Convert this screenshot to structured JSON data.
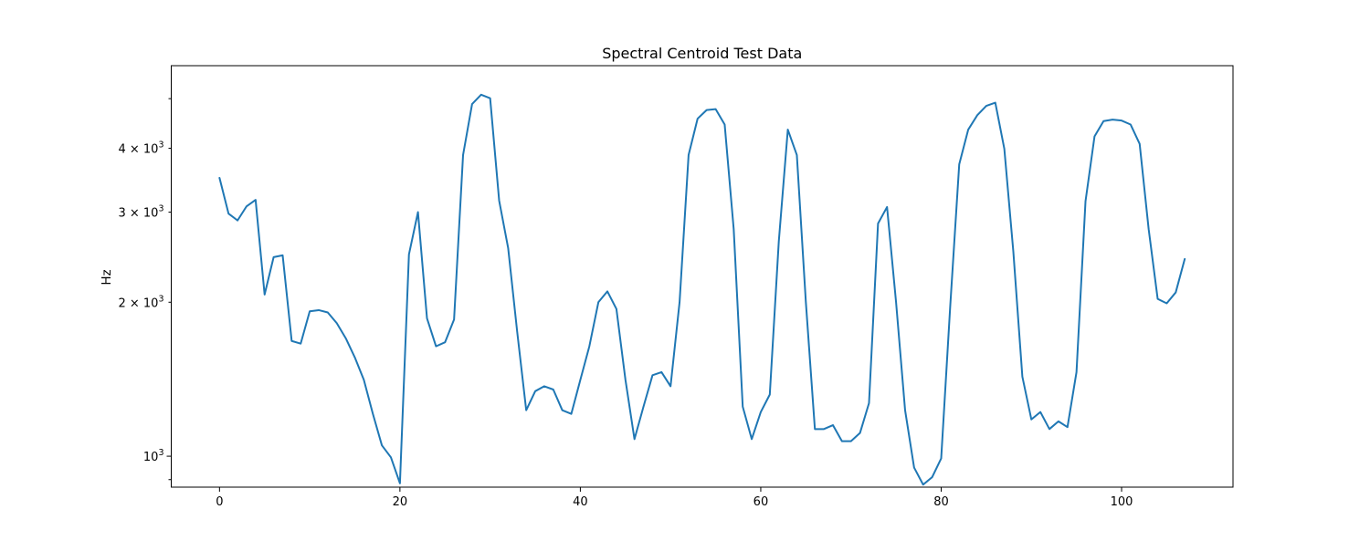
{
  "chart_data": {
    "type": "line",
    "title": "Spectral Centroid Test Data",
    "xlabel": "",
    "ylabel": "Hz",
    "y_scale": "log",
    "xlim": [
      -5.35,
      112.35
    ],
    "ylim": [
      870,
      5800
    ],
    "grid": false,
    "x_ticks": [
      {
        "value": 0,
        "label": "0"
      },
      {
        "value": 20,
        "label": "20"
      },
      {
        "value": 40,
        "label": "40"
      },
      {
        "value": 60,
        "label": "60"
      },
      {
        "value": 80,
        "label": "80"
      },
      {
        "value": 100,
        "label": "100"
      }
    ],
    "y_major_ticks": [
      {
        "value": 1000,
        "base": "10",
        "exp": "3"
      }
    ],
    "y_minor_ticks": [
      {
        "value": 2000,
        "coef": "2",
        "base": "10",
        "exp": "3"
      },
      {
        "value": 3000,
        "coef": "3",
        "base": "10",
        "exp": "3"
      },
      {
        "value": 4000,
        "coef": "4",
        "base": "10",
        "exp": "3"
      }
    ],
    "y_minor_unlabeled": [
      900,
      5000
    ],
    "series": [
      {
        "color": "#1f77b4",
        "x": [
          0,
          1,
          2,
          3,
          4,
          5,
          6,
          7,
          8,
          9,
          10,
          11,
          12,
          13,
          14,
          15,
          16,
          17,
          18,
          19,
          20,
          21,
          22,
          23,
          24,
          25,
          26,
          27,
          28,
          29,
          30,
          31,
          32,
          33,
          34,
          35,
          36,
          37,
          38,
          39,
          40,
          41,
          42,
          43,
          44,
          45,
          46,
          47,
          48,
          49,
          50,
          51,
          52,
          53,
          54,
          55,
          56,
          57,
          58,
          59,
          60,
          61,
          62,
          63,
          64,
          65,
          66,
          67,
          68,
          69,
          70,
          71,
          72,
          73,
          74,
          75,
          76,
          77,
          78,
          79,
          80,
          81,
          82,
          83,
          84,
          85,
          86,
          87,
          88,
          89,
          90,
          91,
          92,
          93,
          94,
          95,
          96,
          97,
          98,
          99,
          100,
          101,
          102,
          103,
          104,
          105,
          106,
          107
        ],
        "y": [
          3500,
          2980,
          2890,
          3080,
          3170,
          2070,
          2450,
          2470,
          1680,
          1660,
          1920,
          1930,
          1910,
          1820,
          1700,
          1560,
          1410,
          1210,
          1050,
          995,
          885,
          2480,
          3000,
          1860,
          1640,
          1670,
          1850,
          3880,
          4880,
          5090,
          5010,
          3160,
          2550,
          1750,
          1230,
          1340,
          1370,
          1350,
          1230,
          1210,
          1410,
          1640,
          2000,
          2100,
          1940,
          1410,
          1080,
          1250,
          1440,
          1460,
          1370,
          2000,
          3880,
          4570,
          4750,
          4770,
          4450,
          2780,
          1250,
          1080,
          1220,
          1320,
          2630,
          4350,
          3880,
          2000,
          1130,
          1130,
          1150,
          1070,
          1070,
          1110,
          1270,
          2850,
          3070,
          2000,
          1230,
          950,
          880,
          910,
          990,
          1960,
          3720,
          4350,
          4640,
          4840,
          4910,
          3990,
          2510,
          1430,
          1180,
          1220,
          1130,
          1170,
          1140,
          1460,
          3150,
          4220,
          4520,
          4550,
          4530,
          4450,
          4080,
          2780,
          2030,
          1990,
          2090,
          2430
        ]
      }
    ]
  }
}
